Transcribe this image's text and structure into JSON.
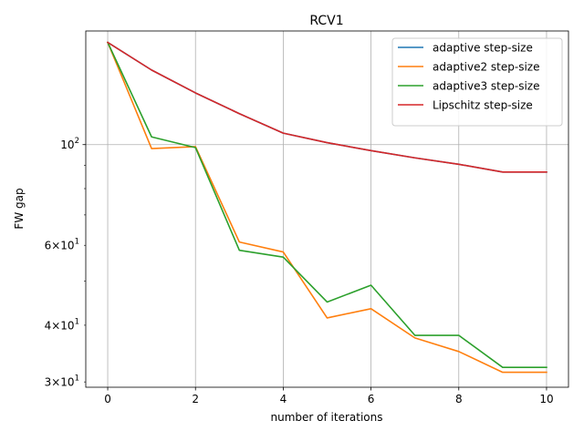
{
  "chart_data": {
    "type": "line",
    "title": "RCV1",
    "xlabel": "number of iterations",
    "ylabel": "FW gap",
    "xlim": [
      -0.5,
      10.5
    ],
    "ylim": [
      29.2,
      178
    ],
    "yscale": "log",
    "grid": true,
    "legend_position": "upper right",
    "x": [
      0,
      1,
      2,
      3,
      4,
      5,
      6,
      7,
      8,
      9,
      10
    ],
    "x_ticks": [
      {
        "value": 0,
        "label": "0"
      },
      {
        "value": 2,
        "label": "2"
      },
      {
        "value": 4,
        "label": "4"
      },
      {
        "value": 6,
        "label": "6"
      },
      {
        "value": 8,
        "label": "8"
      },
      {
        "value": 10,
        "label": "10"
      }
    ],
    "y_major_ticks": [
      {
        "value": 100,
        "label": "10",
        "exp": "2"
      }
    ],
    "y_minor_ticks": [
      {
        "value": 30,
        "mant": "3",
        "label": "10",
        "exp": "1"
      },
      {
        "value": 40,
        "mant": "4",
        "label": "10",
        "exp": "1"
      },
      {
        "value": 50,
        "mant": "",
        "label": "",
        "exp": ""
      },
      {
        "value": 60,
        "mant": "6",
        "label": "10",
        "exp": "1"
      },
      {
        "value": 70,
        "mant": "",
        "label": "",
        "exp": ""
      },
      {
        "value": 80,
        "mant": "",
        "label": "",
        "exp": ""
      },
      {
        "value": 90,
        "mant": "",
        "label": "",
        "exp": ""
      }
    ],
    "times_sign": "×",
    "series": [
      {
        "name": "adaptive step-size",
        "color": "#1f77b4",
        "values": [
          168,
          146,
          130,
          117,
          106,
          101,
          97,
          93.5,
          90.5,
          87,
          87
        ]
      },
      {
        "name": "adaptive2 step-size",
        "color": "#ff7f0e",
        "values": [
          168,
          98,
          99,
          61,
          58,
          41.5,
          43.5,
          37.5,
          35,
          31.5,
          31.5
        ]
      },
      {
        "name": "adaptive3 step-size",
        "color": "#2ca02c",
        "values": [
          168,
          104,
          98.5,
          58.5,
          56.5,
          45,
          49,
          38,
          38,
          32.3,
          32.3
        ]
      },
      {
        "name": "Lipschitz step-size",
        "color": "#d62728",
        "values": [
          168,
          146,
          130,
          117,
          106,
          101,
          97,
          93.5,
          90.5,
          87,
          87
        ]
      }
    ]
  }
}
